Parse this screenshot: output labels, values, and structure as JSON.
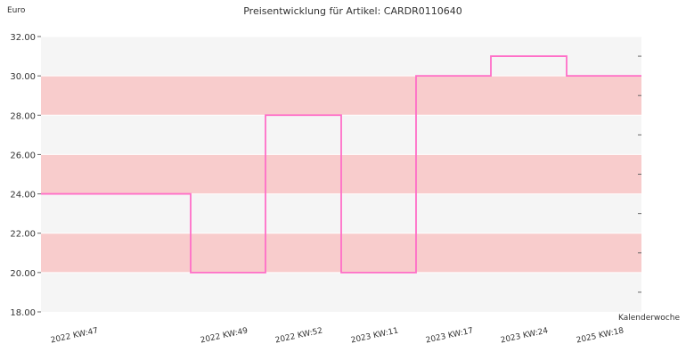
{
  "chart_data": {
    "type": "line",
    "step": true,
    "title": "Preisentwicklung für Artikel: CARDR0110640",
    "ylabel": "Euro",
    "xlabel": "Kalenderwoche",
    "ylim": [
      18,
      32
    ],
    "yticks": [
      "18.00",
      "20.00",
      "22.00",
      "24.00",
      "26.00",
      "28.00",
      "30.00",
      "32.00"
    ],
    "categories": [
      "2022 KW:47",
      "2022 KW:49",
      "2022 KW:52",
      "2023 KW:11",
      "2023 KW:17",
      "2023 KW:24",
      "2025 KW:18"
    ],
    "series": [
      {
        "values": [
          24,
          20,
          28,
          20,
          30,
          31,
          30
        ]
      }
    ],
    "colors": {
      "line": "#ff6ec7",
      "band_alt": "#f8cccc",
      "band_base": "#f5f5f5",
      "grid": "#ffffff",
      "axis": "#666666"
    },
    "grid": true
  }
}
